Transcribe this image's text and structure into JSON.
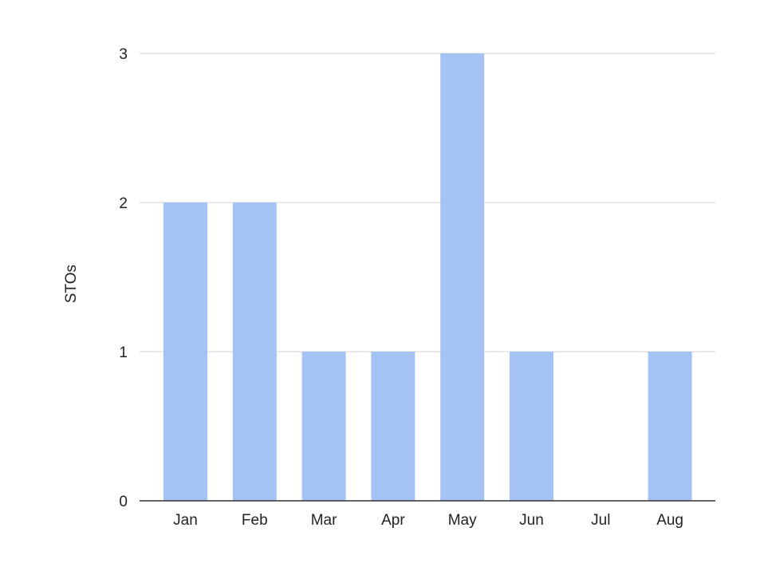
{
  "chart_data": {
    "type": "bar",
    "title": "",
    "xlabel": "",
    "ylabel": "STOs",
    "categories": [
      "Jan",
      "Feb",
      "Mar",
      "Apr",
      "May",
      "Jun",
      "Jul",
      "Aug"
    ],
    "values": [
      2,
      2,
      1,
      1,
      3,
      1,
      0,
      1
    ],
    "ylim": [
      0,
      3
    ],
    "yticks": [
      0,
      1,
      2,
      3
    ],
    "grid": true,
    "legend": "none",
    "colors": {
      "bar": "#a4c2f4",
      "grid": "#d9d9d9",
      "axis": "#333333",
      "text": "#222222"
    }
  }
}
